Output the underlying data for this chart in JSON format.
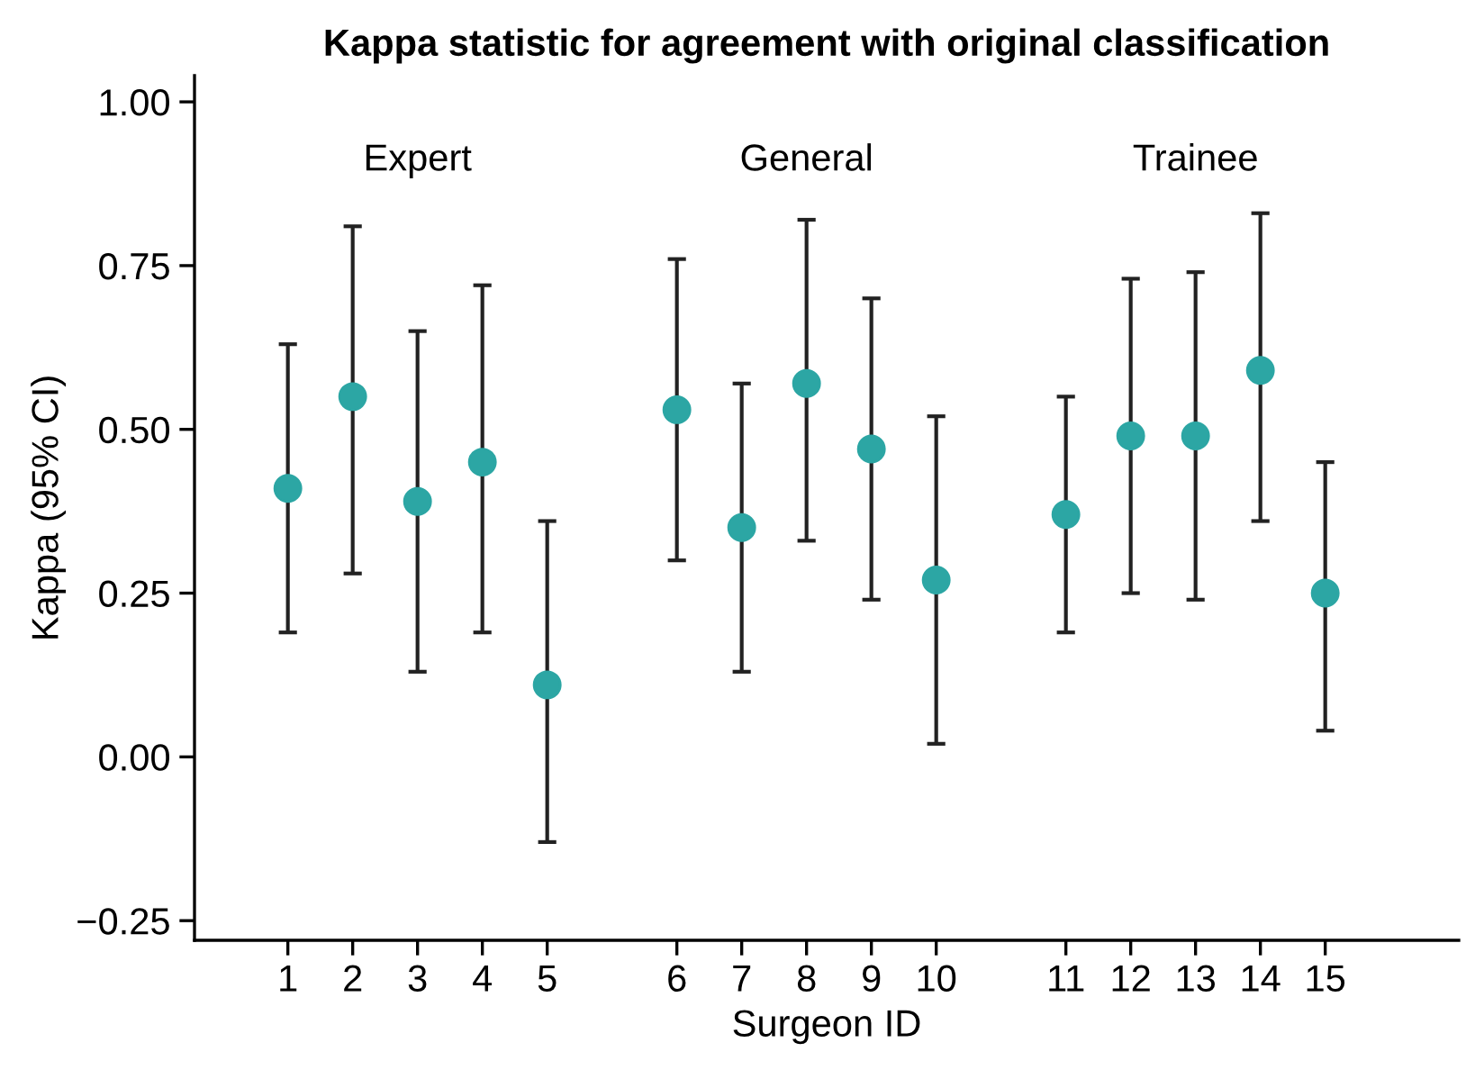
{
  "chart_data": {
    "type": "scatter",
    "title": "Kappa statistic for agreement with original classification",
    "xlabel": "Surgeon ID",
    "ylabel": "Kappa (95% CI)",
    "categories": [
      "1",
      "2",
      "3",
      "4",
      "5",
      null,
      "6",
      "7",
      "8",
      "9",
      "10",
      null,
      "11",
      "12",
      "13",
      "14",
      "15"
    ],
    "values": [
      0.41,
      0.55,
      0.39,
      0.45,
      0.11,
      null,
      0.53,
      0.35,
      0.57,
      0.47,
      0.27,
      null,
      0.37,
      0.49,
      0.49,
      0.59,
      0.25
    ],
    "errors": [
      [
        0.19,
        0.63
      ],
      [
        0.28,
        0.81
      ],
      [
        0.13,
        0.65
      ],
      [
        0.19,
        0.72
      ],
      [
        -0.13,
        0.36
      ],
      null,
      [
        0.3,
        0.76
      ],
      [
        0.13,
        0.57
      ],
      [
        0.33,
        0.82
      ],
      [
        0.24,
        0.7
      ],
      [
        0.02,
        0.52
      ],
      null,
      [
        0.19,
        0.55
      ],
      [
        0.25,
        0.73
      ],
      [
        0.24,
        0.74
      ],
      [
        0.36,
        0.83
      ],
      [
        0.04,
        0.45
      ]
    ],
    "color": "#2ca6a4",
    "marker": "circle",
    "grid": false,
    "ylim": [
      -0.28,
      1.04
    ],
    "yticks": [
      {
        "value": -0.25,
        "label": "−0.25"
      },
      {
        "value": 0,
        "label": "0.00"
      },
      {
        "value": 0.25,
        "label": "0.25"
      },
      {
        "value": 0.5,
        "label": "0.50"
      },
      {
        "value": 0.75,
        "label": "0.75"
      },
      {
        "value": 1,
        "label": "1.00"
      }
    ],
    "annotations": [
      "Expert",
      "General",
      "Trainee"
    ]
  }
}
